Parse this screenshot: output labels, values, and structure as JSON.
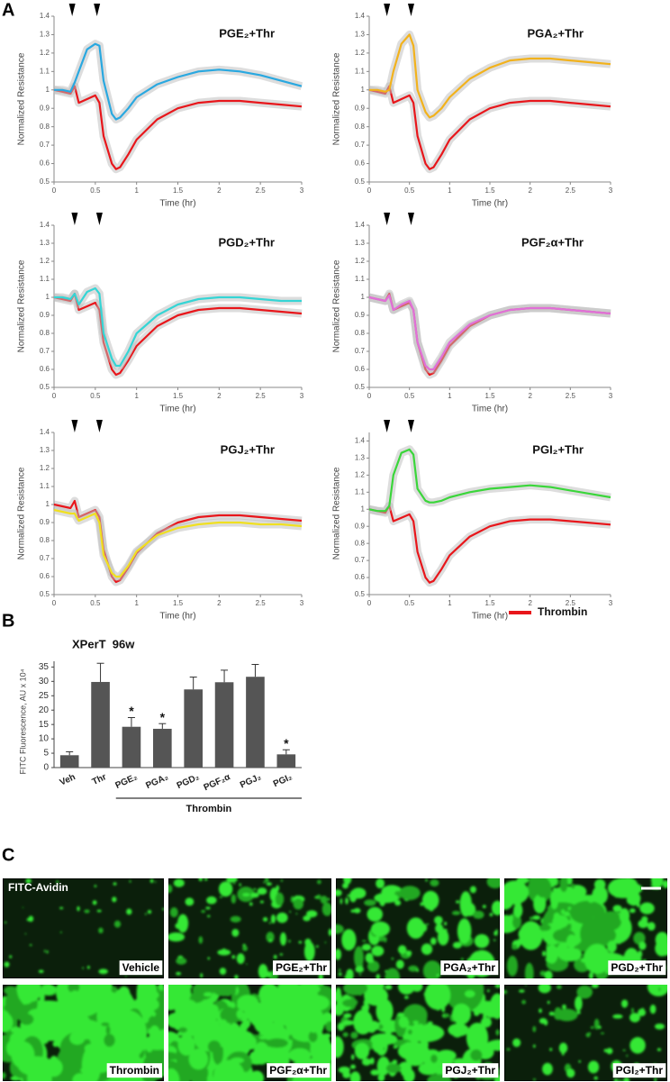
{
  "panel_labels": [
    "A",
    "B",
    "C"
  ],
  "legend_note": null,
  "chart_data": [
    {
      "type": "line",
      "title": "PGE₂+Thr",
      "x_label": "Time (hr)",
      "y_label": "Normalized Resistance",
      "x": [
        0,
        0.1,
        0.2,
        0.25,
        0.3,
        0.4,
        0.5,
        0.55,
        0.6,
        0.7,
        0.75,
        0.8,
        0.9,
        1.0,
        1.25,
        1.5,
        1.75,
        2,
        2.25,
        2.5,
        2.75,
        3
      ],
      "series": [
        {
          "name": "Thrombin",
          "color": "#e8161b",
          "values": [
            1.0,
            0.99,
            0.98,
            1.02,
            0.93,
            0.95,
            0.97,
            0.93,
            0.75,
            0.6,
            0.57,
            0.58,
            0.65,
            0.73,
            0.84,
            0.9,
            0.93,
            0.94,
            0.94,
            0.93,
            0.92,
            0.91
          ]
        },
        {
          "color": "#29a8e0",
          "values": [
            1.0,
            1.0,
            0.99,
            1.04,
            1.1,
            1.22,
            1.25,
            1.24,
            1.05,
            0.87,
            0.84,
            0.85,
            0.9,
            0.96,
            1.03,
            1.07,
            1.1,
            1.11,
            1.1,
            1.08,
            1.05,
            1.02
          ]
        }
      ],
      "markers_x": [
        0.22,
        0.52
      ],
      "xlim": [
        0,
        3
      ],
      "xticks": [
        0,
        0.5,
        1,
        1.5,
        2,
        2.5,
        3
      ],
      "ylim": [
        0.5,
        1.4
      ],
      "yticks": [
        0.5,
        0.6,
        0.7,
        0.8,
        0.9,
        1,
        1.1,
        1.2,
        1.3,
        1.4
      ]
    },
    {
      "type": "line",
      "title": "PGA₂+Thr",
      "x_label": "Time (hr)",
      "y_label": "Normalized Resistance",
      "x": [
        0,
        0.1,
        0.2,
        0.25,
        0.3,
        0.4,
        0.5,
        0.55,
        0.6,
        0.7,
        0.75,
        0.8,
        0.9,
        1.0,
        1.25,
        1.5,
        1.75,
        2,
        2.25,
        2.5,
        2.75,
        3
      ],
      "series": [
        {
          "color": "#e8161b",
          "values": [
            1.0,
            0.99,
            0.98,
            1.02,
            0.93,
            0.95,
            0.97,
            0.93,
            0.75,
            0.6,
            0.57,
            0.58,
            0.65,
            0.73,
            0.84,
            0.9,
            0.93,
            0.94,
            0.94,
            0.93,
            0.92,
            0.91
          ]
        },
        {
          "color": "#f2b21c",
          "values": [
            1.0,
            1.0,
            0.99,
            1.0,
            1.1,
            1.25,
            1.3,
            1.24,
            1.0,
            0.88,
            0.85,
            0.86,
            0.9,
            0.96,
            1.06,
            1.12,
            1.16,
            1.17,
            1.17,
            1.16,
            1.15,
            1.14
          ]
        }
      ],
      "markers_x": [
        0.22,
        0.52
      ],
      "xlim": [
        0,
        3
      ],
      "xticks": [
        0,
        0.5,
        1,
        1.5,
        2,
        2.5,
        3
      ],
      "ylim": [
        0.5,
        1.4
      ],
      "yticks": [
        0.5,
        0.6,
        0.7,
        0.8,
        0.9,
        1,
        1.1,
        1.2,
        1.3,
        1.4
      ]
    },
    {
      "type": "line",
      "title": "PGD₂+Thr",
      "x_label": "Time (hr)",
      "y_label": "Normalized Resistance",
      "x": [
        0,
        0.1,
        0.2,
        0.25,
        0.3,
        0.4,
        0.5,
        0.55,
        0.6,
        0.7,
        0.75,
        0.8,
        0.9,
        1.0,
        1.25,
        1.5,
        1.75,
        2,
        2.25,
        2.5,
        2.75,
        3
      ],
      "series": [
        {
          "color": "#e8161b",
          "values": [
            1.0,
            0.99,
            0.98,
            1.02,
            0.93,
            0.95,
            0.97,
            0.93,
            0.75,
            0.6,
            0.57,
            0.58,
            0.65,
            0.73,
            0.84,
            0.9,
            0.93,
            0.94,
            0.94,
            0.93,
            0.92,
            0.91
          ]
        },
        {
          "color": "#35d5d5",
          "values": [
            1.0,
            1.0,
            0.99,
            1.02,
            0.96,
            1.03,
            1.05,
            1.02,
            0.8,
            0.66,
            0.62,
            0.62,
            0.7,
            0.8,
            0.9,
            0.96,
            0.99,
            1.0,
            1.0,
            0.99,
            0.98,
            0.98
          ]
        }
      ],
      "markers_x": [
        0.25,
        0.55
      ],
      "xlim": [
        0,
        3
      ],
      "xticks": [
        0,
        0.5,
        1,
        1.5,
        2,
        2.5,
        3
      ],
      "ylim": [
        0.5,
        1.4
      ],
      "yticks": [
        0.5,
        0.6,
        0.7,
        0.8,
        0.9,
        1,
        1.1,
        1.2,
        1.3,
        1.4
      ]
    },
    {
      "type": "line",
      "title": "PGF₂α+Thr",
      "x_label": "Time (hr)",
      "y_label": "Normalized Resistance",
      "x": [
        0,
        0.1,
        0.2,
        0.25,
        0.3,
        0.4,
        0.5,
        0.55,
        0.6,
        0.7,
        0.75,
        0.8,
        0.9,
        1.0,
        1.25,
        1.5,
        1.75,
        2,
        2.25,
        2.5,
        2.75,
        3
      ],
      "series": [
        {
          "color": "#e8161b",
          "values": [
            1.0,
            0.99,
            0.98,
            1.02,
            0.93,
            0.95,
            0.97,
            0.93,
            0.75,
            0.6,
            0.57,
            0.58,
            0.65,
            0.73,
            0.84,
            0.9,
            0.93,
            0.94,
            0.94,
            0.93,
            0.92,
            0.91
          ]
        },
        {
          "color": "#e070d8",
          "values": [
            1.0,
            0.99,
            0.98,
            1.01,
            0.93,
            0.96,
            0.98,
            0.93,
            0.75,
            0.62,
            0.6,
            0.6,
            0.67,
            0.75,
            0.85,
            0.9,
            0.93,
            0.94,
            0.94,
            0.93,
            0.92,
            0.91
          ]
        }
      ],
      "markers_x": [
        0.22,
        0.52
      ],
      "xlim": [
        0,
        3
      ],
      "xticks": [
        0,
        0.5,
        1,
        1.5,
        2,
        2.5,
        3
      ],
      "ylim": [
        0.5,
        1.4
      ],
      "yticks": [
        0.5,
        0.6,
        0.7,
        0.8,
        0.9,
        1,
        1.1,
        1.2,
        1.3,
        1.4
      ]
    },
    {
      "type": "line",
      "title": "PGJ₂+Thr",
      "x_label": "Time (hr)",
      "y_label": "Normalized Resistance",
      "x": [
        0,
        0.1,
        0.2,
        0.25,
        0.3,
        0.4,
        0.5,
        0.55,
        0.6,
        0.7,
        0.75,
        0.8,
        0.9,
        1.0,
        1.25,
        1.5,
        1.75,
        2,
        2.25,
        2.5,
        2.75,
        3
      ],
      "series": [
        {
          "color": "#e8161b",
          "values": [
            1.0,
            0.99,
            0.98,
            1.02,
            0.93,
            0.95,
            0.97,
            0.93,
            0.75,
            0.6,
            0.57,
            0.58,
            0.65,
            0.73,
            0.84,
            0.9,
            0.93,
            0.94,
            0.94,
            0.93,
            0.92,
            0.91
          ]
        },
        {
          "color": "#f0e020",
          "values": [
            0.97,
            0.96,
            0.95,
            0.95,
            0.91,
            0.93,
            0.95,
            0.9,
            0.72,
            0.62,
            0.6,
            0.6,
            0.66,
            0.74,
            0.83,
            0.87,
            0.89,
            0.9,
            0.9,
            0.89,
            0.89,
            0.88
          ]
        }
      ],
      "markers_x": [
        0.25,
        0.55
      ],
      "xlim": [
        0,
        3
      ],
      "xticks": [
        0,
        0.5,
        1,
        1.5,
        2,
        2.5,
        3
      ],
      "ylim": [
        0.5,
        1.4
      ],
      "yticks": [
        0.5,
        0.6,
        0.7,
        0.8,
        0.9,
        1,
        1.1,
        1.2,
        1.3,
        1.4
      ]
    },
    {
      "type": "line",
      "title": "PGI₂+Thr",
      "x_label": "Time (hr)",
      "y_label": "Normalized Resistance",
      "x": [
        0,
        0.1,
        0.2,
        0.25,
        0.3,
        0.4,
        0.5,
        0.55,
        0.6,
        0.7,
        0.75,
        0.8,
        0.9,
        1.0,
        1.25,
        1.5,
        1.75,
        2,
        2.25,
        2.5,
        2.75,
        3
      ],
      "series": [
        {
          "color": "#e8161b",
          "values": [
            1.0,
            0.99,
            0.98,
            1.02,
            0.93,
            0.95,
            0.97,
            0.93,
            0.75,
            0.6,
            0.57,
            0.58,
            0.65,
            0.73,
            0.84,
            0.9,
            0.93,
            0.94,
            0.94,
            0.93,
            0.92,
            0.91
          ]
        },
        {
          "color": "#3ad63a",
          "values": [
            1.0,
            0.99,
            0.99,
            1.02,
            1.2,
            1.33,
            1.35,
            1.32,
            1.12,
            1.05,
            1.04,
            1.04,
            1.05,
            1.07,
            1.1,
            1.12,
            1.13,
            1.14,
            1.13,
            1.11,
            1.09,
            1.07
          ]
        }
      ],
      "markers_x": [
        0.22,
        0.52
      ],
      "xlim": [
        0,
        3
      ],
      "xticks": [
        0,
        0.5,
        1,
        1.5,
        2,
        2.5,
        3
      ],
      "ylim": [
        0.5,
        1.45
      ],
      "yticks": [
        0.5,
        0.6,
        0.7,
        0.8,
        0.9,
        1,
        1.1,
        1.2,
        1.3,
        1.4
      ]
    },
    {
      "type": "bar",
      "title": "XPerT  96w",
      "y_label": "FITC Fluorescence, AU x 10⁴",
      "categories": [
        "Veh",
        "Thr",
        "PGE₂",
        "PGA₂",
        "PGD₂",
        "PGF₂α",
        "PGJ₂",
        "PGI₂"
      ],
      "values": [
        4.3,
        29.8,
        14.2,
        13.5,
        27.2,
        29.7,
        31.6,
        4.6
      ],
      "errors": [
        1.2,
        6.5,
        3.2,
        1.8,
        4.3,
        4.2,
        4.3,
        1.6
      ],
      "color": "#555555",
      "annotations": [
        {
          "category": "PGE₂",
          "text": "*"
        },
        {
          "category": "PGA₂",
          "text": "*"
        },
        {
          "category": "PGI₂",
          "text": "*"
        }
      ],
      "group_label": "Thrombin",
      "group_from": "PGE₂",
      "group_to": "PGI₂",
      "ylim": [
        0,
        37
      ],
      "yticks": [
        0,
        5,
        10,
        15,
        20,
        25,
        30,
        35
      ]
    }
  ],
  "images": {
    "stain": "FITC-Avidin",
    "labels": [
      "Vehicle",
      "PGE₂+Thr",
      "PGA₂+Thr",
      "PGD₂+Thr",
      "Thrombin",
      "PGF₂α+Thr",
      "PGJ₂+Thr",
      "PGI₂+Thr"
    ]
  }
}
